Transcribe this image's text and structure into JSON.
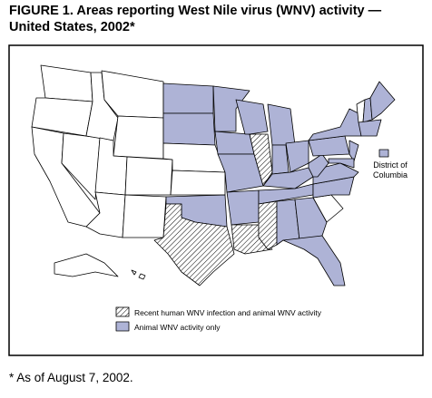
{
  "title": {
    "lines": [
      "FIGURE 1. Areas reporting West Nile virus (WNV) activity —",
      "United States, 2002*"
    ]
  },
  "map": {
    "callout": {
      "lines": [
        "District of",
        "Columbia"
      ]
    },
    "legend": [
      "Recent human WNV infection and animal WNV activity",
      "Animal WNV activity only"
    ]
  },
  "footnote": "* As of August 7, 2002."
}
